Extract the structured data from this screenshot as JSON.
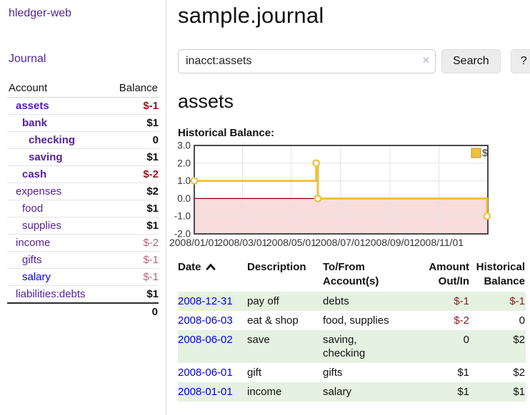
{
  "sidebar": {
    "app_title": "hledger-web",
    "nav": {
      "journal": "Journal"
    },
    "accounts_table": {
      "headers": {
        "account": "Account",
        "balance": "Balance"
      },
      "rows": [
        {
          "name": "assets",
          "balance": "$-1",
          "indent": 1,
          "bold": true,
          "balance_style": "negative-strong"
        },
        {
          "name": "bank",
          "balance": "$1",
          "indent": 2,
          "bold": true,
          "balance_style": "positive"
        },
        {
          "name": "checking",
          "balance": "0",
          "indent": 3,
          "bold": true,
          "balance_style": "positive"
        },
        {
          "name": "saving",
          "balance": "$1",
          "indent": 3,
          "bold": true,
          "balance_style": "positive"
        },
        {
          "name": "cash",
          "balance": "$-2",
          "indent": 2,
          "bold": true,
          "balance_style": "negative-strong"
        },
        {
          "name": "expenses",
          "balance": "$2",
          "indent": 1,
          "bold": false,
          "balance_style": "positive"
        },
        {
          "name": "food",
          "balance": "$1",
          "indent": 2,
          "bold": false,
          "balance_style": "positive"
        },
        {
          "name": "supplies",
          "balance": "$1",
          "indent": 2,
          "bold": false,
          "balance_style": "positive"
        },
        {
          "name": "income",
          "balance": "$-2",
          "indent": 1,
          "bold": false,
          "balance_style": "negative-faded"
        },
        {
          "name": "gifts",
          "balance": "$-1",
          "indent": 2,
          "bold": false,
          "balance_style": "negative-faded"
        },
        {
          "name": "salary",
          "balance": "$-1",
          "indent": 2,
          "bold": false,
          "balance_style": "negative-faded",
          "link_variant": "blue"
        },
        {
          "name": "liabilities:debts",
          "balance": "$1",
          "indent": 1,
          "bold": false,
          "balance_style": "positive"
        }
      ],
      "total": "0"
    }
  },
  "main": {
    "title": "sample.journal",
    "search": {
      "value": "inacct:assets",
      "clear_icon": "×",
      "search_button": "Search",
      "help_button": "?"
    },
    "account_heading": "assets",
    "section_label": "Historical Balance:",
    "register_table": {
      "headers": [
        {
          "lines": [
            "Date"
          ],
          "align": "left",
          "sort_icon": "chevron-up"
        },
        {
          "lines": [
            "Description"
          ],
          "align": "left"
        },
        {
          "lines": [
            "To/From",
            "Account(s)"
          ],
          "align": "left"
        },
        {
          "lines": [
            "Amount",
            "Out/In"
          ],
          "align": "right"
        },
        {
          "lines": [
            "Historical",
            "Balance"
          ],
          "align": "right"
        }
      ],
      "rows": [
        {
          "date": "2008-12-31",
          "description": "pay off",
          "accounts_lines": [
            "debts"
          ],
          "amount": "$-1",
          "amount_negative": true,
          "balance": "$-1",
          "balance_negative": true
        },
        {
          "date": "2008-06-03",
          "description": "eat & shop",
          "accounts_lines": [
            "food, supplies"
          ],
          "amount": "$-2",
          "amount_negative": true,
          "balance": "0",
          "balance_negative": false
        },
        {
          "date": "2008-06-02",
          "description": "save",
          "accounts_lines": [
            "saving,",
            "checking"
          ],
          "amount": "0",
          "amount_negative": false,
          "balance": "$2",
          "balance_negative": false
        },
        {
          "date": "2008-06-01",
          "description": "gift",
          "accounts_lines": [
            "gifts"
          ],
          "amount": "$1",
          "amount_negative": false,
          "balance": "$2",
          "balance_negative": false
        },
        {
          "date": "2008-01-01",
          "description": "income",
          "accounts_lines": [
            "salary"
          ],
          "amount": "$1",
          "amount_negative": false,
          "balance": "$1",
          "balance_negative": false
        }
      ]
    }
  },
  "chart_data": {
    "type": "line",
    "title": "Historical Balance:",
    "step": true,
    "series": [
      {
        "name": "$",
        "color": "#edc240",
        "points": [
          [
            "2008/01/01",
            1
          ],
          [
            "2008/06/01",
            2
          ],
          [
            "2008/06/03",
            0
          ],
          [
            "2008/12/31",
            -1
          ]
        ]
      }
    ],
    "xlim": [
      "2008/01/01",
      "2009/01/01"
    ],
    "ylim": [
      -2,
      3
    ],
    "yticks": [
      -2,
      -1,
      0,
      1,
      2,
      3
    ],
    "xtick_labels": [
      "2008/01/01",
      "2008/03/01",
      "2008/05/01",
      "2008/07/01",
      "2008/09/01",
      "2008/11/01"
    ],
    "grid": true,
    "legend_position": "top-right",
    "colors": {
      "negative_region": "#f9dcdc",
      "zero_line": "#8b0000",
      "gridline": "#e3e3e3",
      "plot_border": "#4a4a4a",
      "point_fill": "#ffffff",
      "legend_square_border": "#b8941f"
    }
  }
}
